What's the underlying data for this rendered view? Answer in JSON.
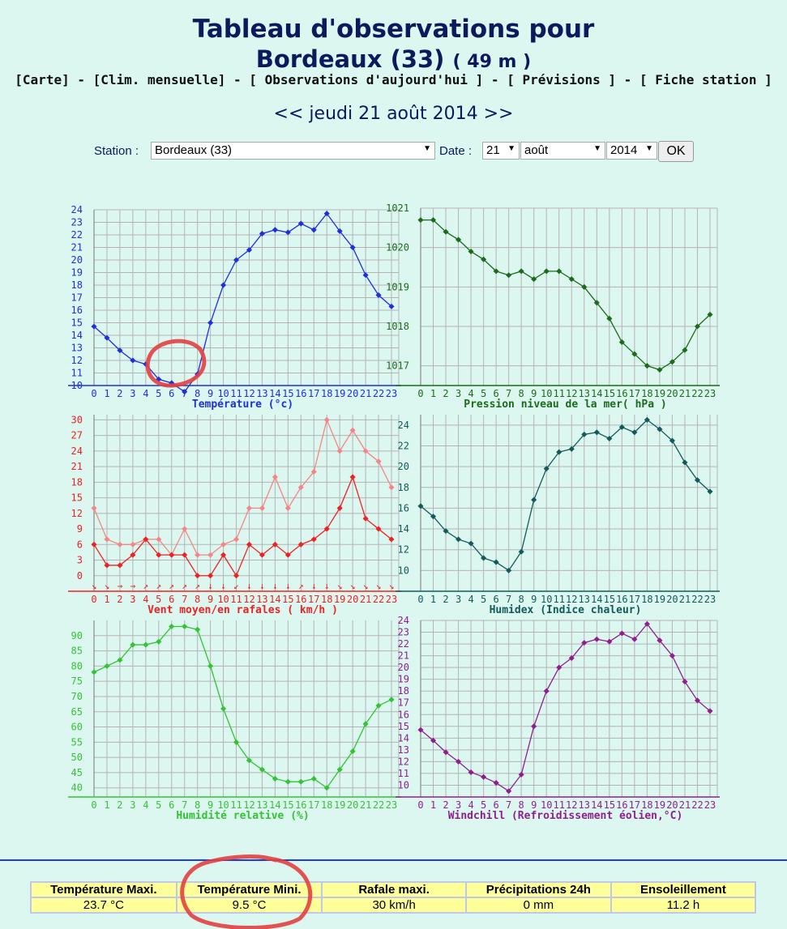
{
  "header": {
    "title_line1": "Tableau d'observations pour",
    "title_line2": "Bordeaux (33)",
    "altitude": "( 49 m )"
  },
  "nav": [
    "[Carte]",
    "[Clim. mensuelle]",
    "[ Observations d'aujourd'hui ]",
    "[ Prévisions ]",
    "[ Fiche station ]"
  ],
  "nav_sep": " - ",
  "date_nav": {
    "prev": "<<",
    "date": "jeudi 21 août 2014",
    "next": ">>"
  },
  "form": {
    "station_label": "Station :",
    "station_value": "Bordeaux (33)",
    "date_label": "Date :",
    "day": "21",
    "month": "août",
    "year": "2014",
    "ok_label": "OK"
  },
  "chart_data": [
    {
      "type": "line",
      "xlabel": "Température (°c)",
      "color": "#1f2ee0",
      "x": [
        0,
        1,
        2,
        3,
        4,
        5,
        6,
        7,
        8,
        9,
        10,
        11,
        12,
        13,
        14,
        15,
        16,
        17,
        18,
        19,
        20,
        21,
        22,
        23
      ],
      "ylim": [
        10,
        24
      ],
      "yticks": [
        10,
        11,
        12,
        13,
        14,
        15,
        16,
        17,
        18,
        19,
        20,
        21,
        22,
        23,
        24
      ],
      "series": [
        {
          "values": [
            14.7,
            13.8,
            12.8,
            12.0,
            11.7,
            10.5,
            10.2,
            9.5,
            10.9,
            15.0,
            18.0,
            20.0,
            20.8,
            22.1,
            22.4,
            22.2,
            22.9,
            22.4,
            23.7,
            22.3,
            21.0,
            18.8,
            17.2,
            16.3
          ]
        }
      ]
    },
    {
      "type": "line",
      "xlabel": "Pression niveau de la mer( hPa )",
      "color": "#1a6b1a",
      "x": [
        0,
        1,
        2,
        3,
        4,
        5,
        6,
        7,
        8,
        9,
        10,
        11,
        12,
        13,
        14,
        15,
        16,
        17,
        18,
        19,
        20,
        21,
        22,
        23
      ],
      "ylim": [
        1016.5,
        1021
      ],
      "yticks": [
        1017,
        1018,
        1019,
        1020,
        1021
      ],
      "series": [
        {
          "values": [
            1020.7,
            1020.7,
            1020.4,
            1020.2,
            1019.9,
            1019.7,
            1019.4,
            1019.3,
            1019.4,
            1019.2,
            1019.4,
            1019.4,
            1019.2,
            1019.0,
            1018.6,
            1018.2,
            1017.6,
            1017.3,
            1017.0,
            1016.9,
            1017.1,
            1017.4,
            1018.0,
            1018.3
          ]
        }
      ]
    },
    {
      "type": "line",
      "xlabel": "Vent moyen/en rafales ( km/h )",
      "color": "#ee2222",
      "x": [
        0,
        1,
        2,
        3,
        4,
        5,
        6,
        7,
        8,
        9,
        10,
        11,
        12,
        13,
        14,
        15,
        16,
        17,
        18,
        19,
        20,
        21,
        22,
        23
      ],
      "ylim": [
        -3,
        31
      ],
      "yticks": [
        0,
        3,
        6,
        9,
        12,
        15,
        18,
        21,
        24,
        27,
        30
      ],
      "series": [
        {
          "values": [
            6,
            2,
            2,
            4,
            7,
            4,
            4,
            4,
            0,
            0,
            4,
            0,
            6,
            4,
            6,
            4,
            6,
            7,
            9,
            13,
            19,
            11,
            9,
            7
          ]
        },
        {
          "values": [
            13,
            7,
            6,
            6,
            7,
            7,
            4,
            9,
            4,
            4,
            6,
            7,
            13,
            13,
            19,
            13,
            17,
            20,
            30,
            24,
            28,
            24,
            22,
            17
          ]
        }
      ],
      "wind_arrows": [
        "↘",
        "↘",
        "→",
        "→",
        "↗",
        "↗",
        "↗",
        "↗",
        "↗",
        "↓",
        "↓",
        "↙",
        "↓",
        "↓",
        "↓",
        "↓",
        "↗",
        "↓",
        "↓",
        "↘",
        "↘",
        "↘",
        "↘",
        "↘"
      ]
    },
    {
      "type": "line",
      "xlabel": "Humidex (Indice chaleur)",
      "color": "#145a5a",
      "x": [
        0,
        1,
        2,
        3,
        4,
        5,
        6,
        7,
        8,
        9,
        10,
        11,
        12,
        13,
        14,
        15,
        16,
        17,
        18,
        19,
        20,
        21,
        22,
        23
      ],
      "ylim": [
        8,
        25
      ],
      "yticks": [
        10,
        12,
        14,
        16,
        18,
        20,
        22,
        24
      ],
      "series": [
        {
          "values": [
            16.2,
            15.2,
            13.8,
            13.0,
            12.6,
            11.2,
            10.8,
            10.0,
            11.8,
            16.8,
            19.8,
            21.4,
            21.7,
            23.1,
            23.3,
            22.7,
            23.8,
            23.3,
            24.5,
            23.6,
            22.5,
            20.4,
            18.7,
            17.6
          ]
        }
      ]
    },
    {
      "type": "line",
      "xlabel": "Humidité relative (%)",
      "color": "#33c433",
      "x": [
        0,
        1,
        2,
        3,
        4,
        5,
        6,
        7,
        8,
        9,
        10,
        11,
        12,
        13,
        14,
        15,
        16,
        17,
        18,
        19,
        20,
        21,
        22,
        23
      ],
      "ylim": [
        37,
        95
      ],
      "yticks": [
        40,
        45,
        50,
        55,
        60,
        65,
        70,
        75,
        80,
        85,
        90
      ],
      "series": [
        {
          "values": [
            78,
            80,
            82,
            87,
            87,
            88,
            93,
            93,
            92,
            80,
            66,
            55,
            49,
            46,
            43,
            42,
            42,
            43,
            40,
            46,
            52,
            61,
            67,
            69
          ]
        }
      ]
    },
    {
      "type": "line",
      "xlabel": "Windchill (Refroidissement éolien,°C)",
      "color": "#8f1f8f",
      "x": [
        0,
        1,
        2,
        3,
        4,
        5,
        6,
        7,
        8,
        9,
        10,
        11,
        12,
        13,
        14,
        15,
        16,
        17,
        18,
        19,
        20,
        21,
        22,
        23
      ],
      "ylim": [
        9,
        24
      ],
      "yticks": [
        10,
        11,
        12,
        13,
        14,
        15,
        16,
        17,
        18,
        19,
        20,
        21,
        22,
        23,
        24
      ],
      "series": [
        {
          "values": [
            14.7,
            13.8,
            12.8,
            12.0,
            11.1,
            10.7,
            10.2,
            9.5,
            10.9,
            15.0,
            18.0,
            20.0,
            20.8,
            22.1,
            22.4,
            22.2,
            22.9,
            22.4,
            23.7,
            22.3,
            21.0,
            18.8,
            17.2,
            16.3
          ]
        }
      ]
    }
  ],
  "summary": {
    "headers": [
      "Température Maxi.",
      "Température Mini.",
      "Rafale maxi.",
      "Précipitations 24h",
      "Ensoleillement"
    ],
    "values": [
      "23.7 °C",
      "9.5 °C",
      "30 km/h",
      "0 mm",
      "11.2 h"
    ]
  },
  "colors": {
    "background": "#dcf6f0",
    "title": "#0a1a5c",
    "summary_bg": "#ffff99",
    "divider": "#1d3fd6",
    "annotation": "#e34040"
  }
}
